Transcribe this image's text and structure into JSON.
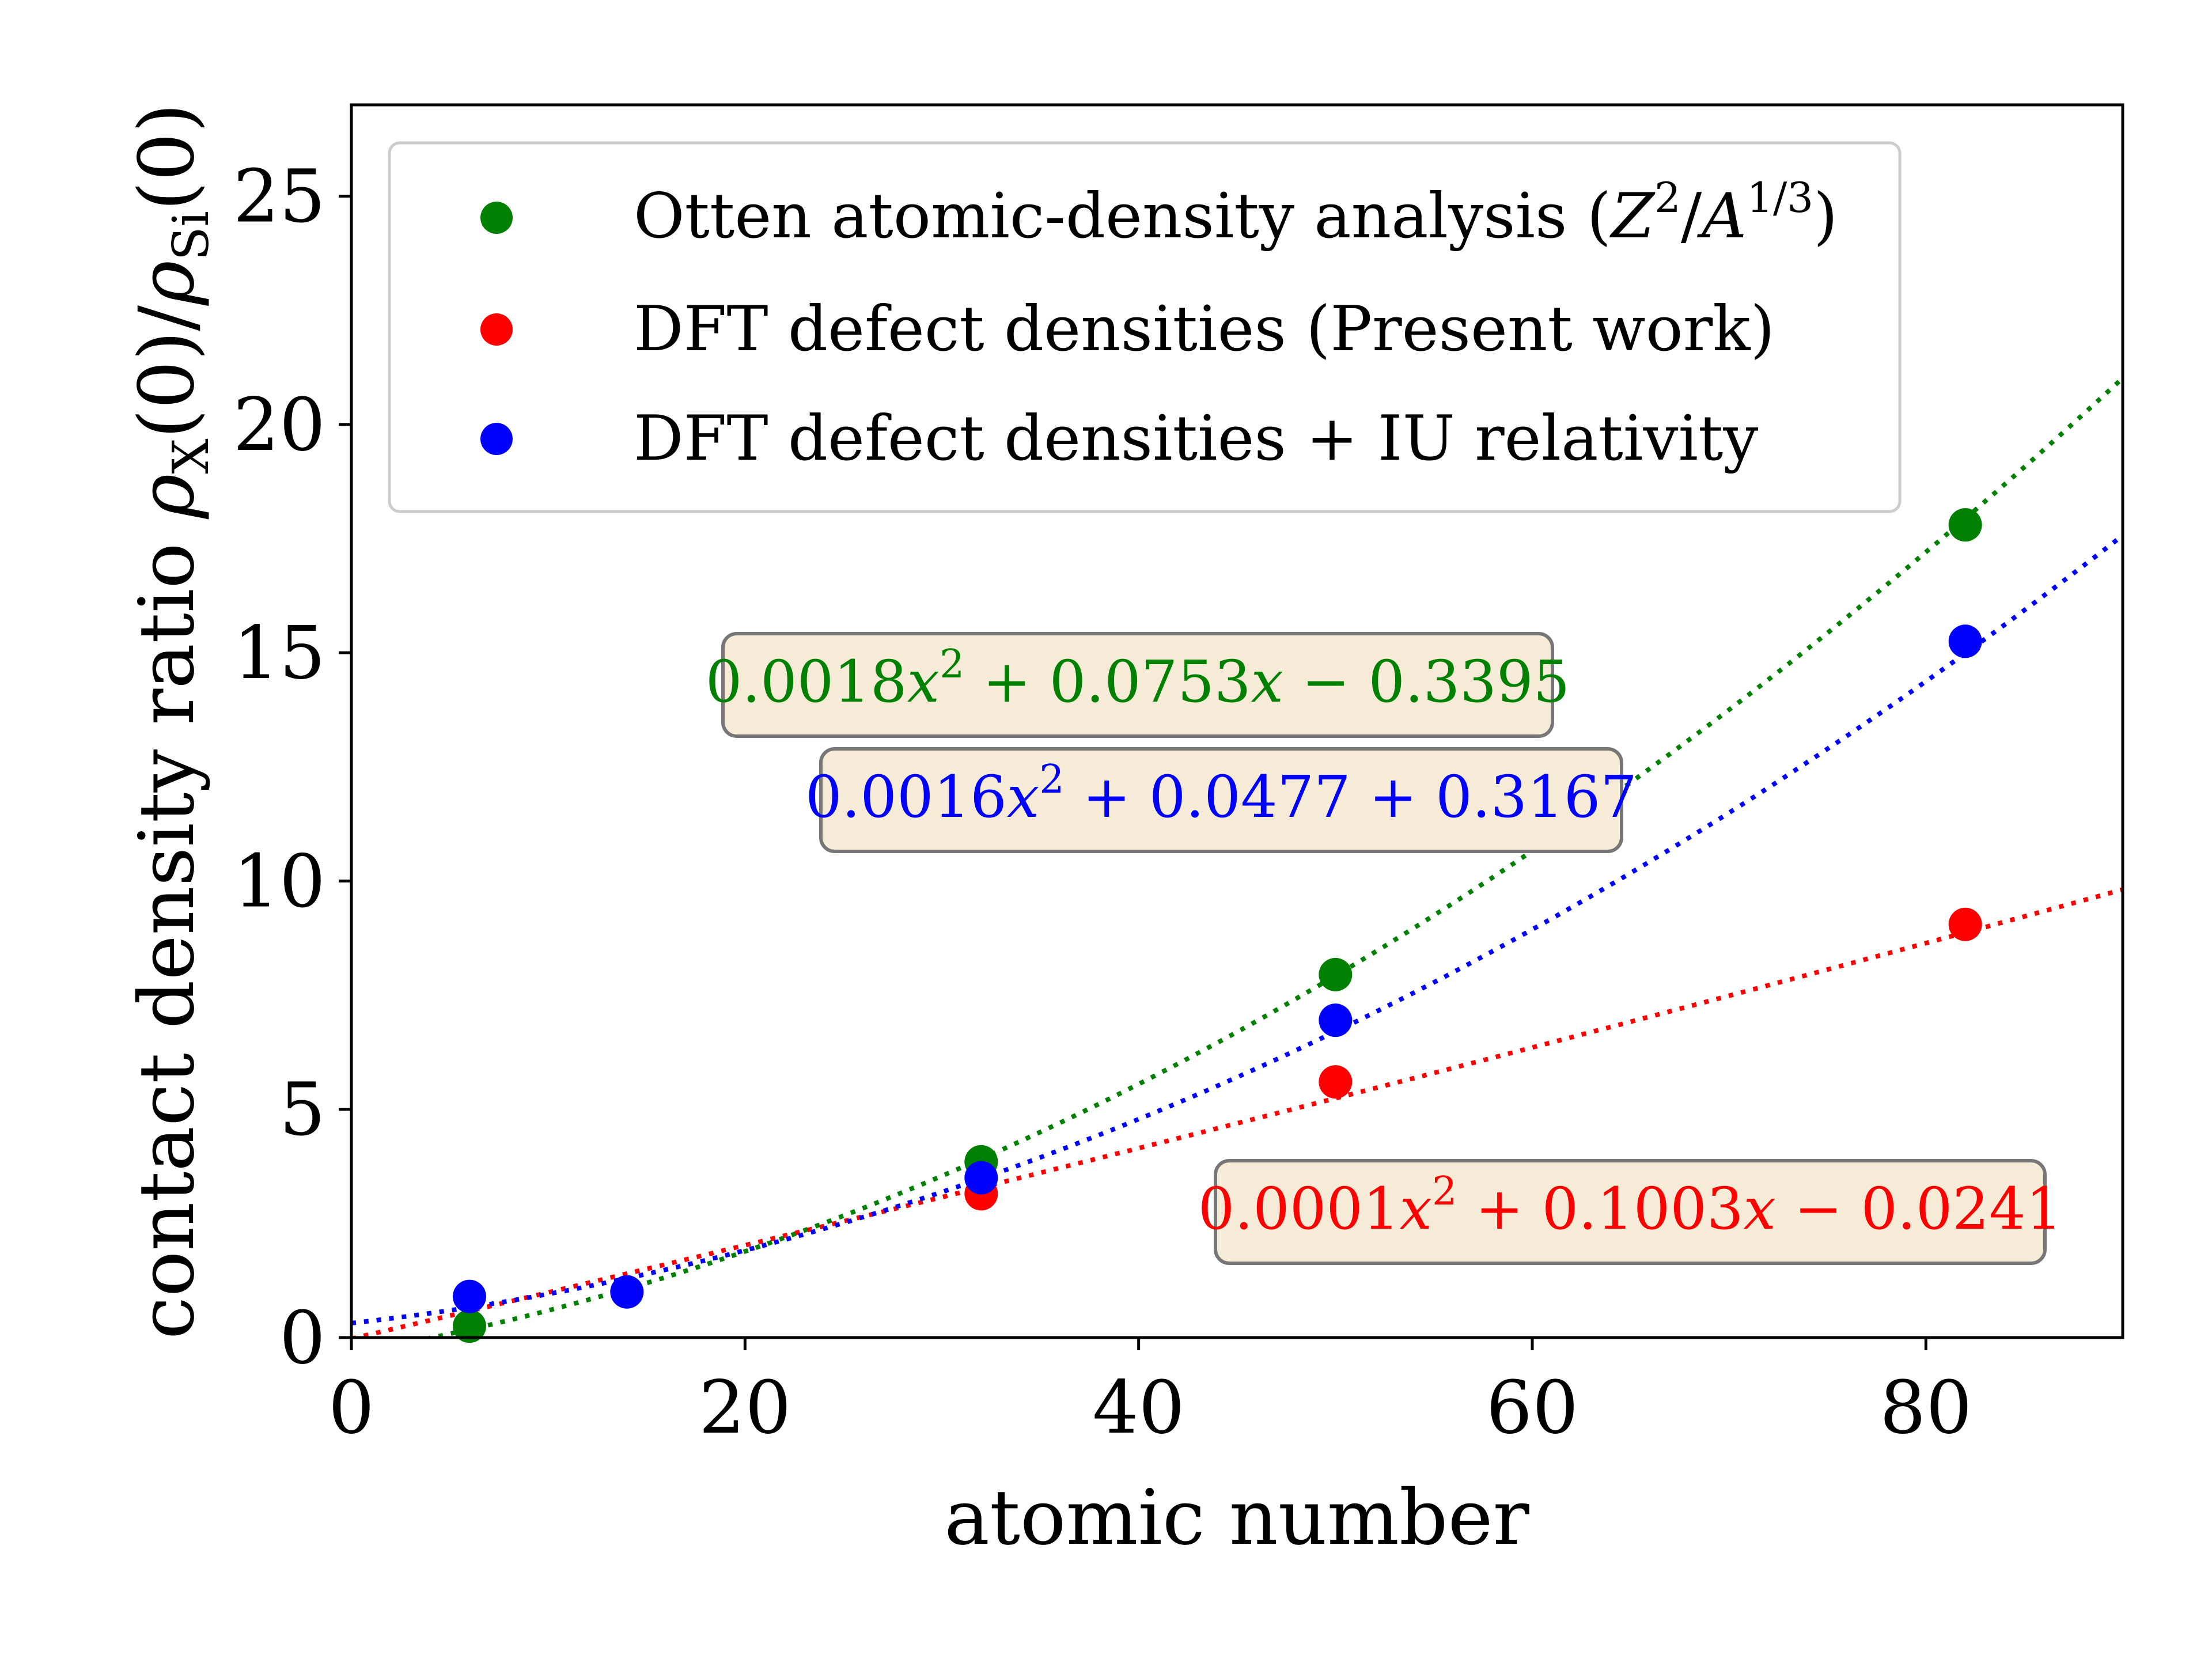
{
  "chart_data": {
    "type": "scatter",
    "xlabel": "atomic number",
    "ylabel": "contact density ratio ρX(0)/ρSi(0)",
    "ylabel_parts": {
      "prefix": "contact density ratio ",
      "rho1": "ρ",
      "sub1": "X",
      "mid": "(0)/",
      "rho2": "ρ",
      "sub2": "Si",
      "suffix": "(0)"
    },
    "xlim": [
      0,
      90
    ],
    "ylim": [
      0,
      27
    ],
    "xticks": [
      0,
      20,
      40,
      60,
      80
    ],
    "yticks": [
      0,
      5,
      10,
      15,
      20,
      25
    ],
    "grid": false,
    "legend_position": "top-left",
    "series": [
      {
        "name": "Otten atomic-density analysis (Z²/A¹/³)",
        "color": "#008000",
        "x": [
          6,
          32,
          50,
          82
        ],
        "y": [
          0.25,
          3.85,
          7.95,
          17.8
        ],
        "fit": {
          "a": 0.0018,
          "b": 0.0753,
          "c": -0.3395
        },
        "fit_label": "0.0018x² + 0.0753x − 0.3395"
      },
      {
        "name": "DFT defect densities (Present work)",
        "color": "#ff0000",
        "x": [
          32,
          50,
          82
        ],
        "y": [
          3.15,
          5.6,
          9.05
        ],
        "fit": {
          "a": 0.0001,
          "b": 0.1003,
          "c": -0.0241
        },
        "fit_label": "0.0001x² + 0.1003x − 0.0241"
      },
      {
        "name": "DFT defect densities + IU relativity",
        "color": "#0000ff",
        "x": [
          6,
          14,
          32,
          50,
          82
        ],
        "y": [
          0.9,
          1.0,
          3.5,
          6.95,
          15.25
        ],
        "fit": {
          "a": 0.0016,
          "b": 0.0477,
          "c": 0.3167
        },
        "fit_label": "0.0016x² + 0.0477 + 0.3167"
      }
    ],
    "legend": {
      "entry1": {
        "pre": "Otten atomic-density analysis (",
        "Z": "Z",
        "exp1": "2",
        "slash": "/",
        "A": "A",
        "exp2": "1/3",
        "post": ")"
      },
      "entry2": "DFT defect densities (Present work)",
      "entry3": "DFT defect densities + IU relativity"
    },
    "annotations": {
      "green": {
        "p1": "0.0018",
        "x1": "x",
        "e": "2",
        "p2": " + 0.0753",
        "x2": "x",
        "p3": " − 0.3395"
      },
      "blue": {
        "p1": "0.0016",
        "x1": "x",
        "e": "2",
        "p2": " + 0.0477 + 0.3167"
      },
      "red": {
        "p1": "0.0001",
        "x1": "x",
        "e": "2",
        "p2": " + 0.1003",
        "x2": "x",
        "p3": " − 0.0241"
      }
    }
  }
}
